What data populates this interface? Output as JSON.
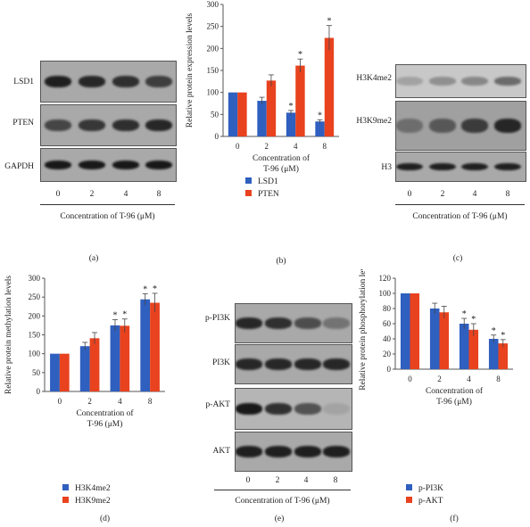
{
  "colors": {
    "blue": "#2f5fbf",
    "red": "#e8421f",
    "blot_bg": "#a9a9a9"
  },
  "conc_label": "Concentration of T-96 (μM)",
  "conc_ticks": [
    "0",
    "2",
    "4",
    "8"
  ],
  "panel_a": {
    "letter": "(a)",
    "rows": [
      "LSD1",
      "PTEN",
      "GAPDH"
    ],
    "band_intensity": [
      [
        0.9,
        0.85,
        0.8,
        0.7
      ],
      [
        0.65,
        0.75,
        0.8,
        0.85
      ],
      [
        0.95,
        0.95,
        0.95,
        0.95
      ]
    ]
  },
  "panel_c": {
    "letter": "(c)",
    "rows": [
      "H3K4me2",
      "H3K9me2",
      "H3"
    ],
    "band_intensity": [
      [
        0.2,
        0.3,
        0.35,
        0.5
      ],
      [
        0.35,
        0.5,
        0.7,
        0.85
      ],
      [
        0.9,
        0.9,
        0.9,
        0.9
      ]
    ]
  },
  "panel_e": {
    "letter": "(e)",
    "rows": [
      "p-PI3K",
      "PI3K",
      "p-AKT",
      "AKT"
    ],
    "band_intensity": [
      [
        0.85,
        0.8,
        0.6,
        0.35
      ],
      [
        0.85,
        0.85,
        0.85,
        0.85
      ],
      [
        0.95,
        0.8,
        0.6,
        0.1
      ],
      [
        0.9,
        0.9,
        0.9,
        0.9
      ]
    ]
  },
  "chart_data": [
    {
      "type": "bar",
      "letter": "(b)",
      "categories": [
        "0",
        "2",
        "4",
        "8"
      ],
      "ylabel": "Relative protein expression levels",
      "xlabel_line1": "Concentration of",
      "xlabel_line2": "T-96 (μM)",
      "ylim": [
        0,
        300
      ],
      "yticks": [
        0,
        50,
        100,
        150,
        200,
        250,
        300
      ],
      "series": [
        {
          "name": "LSD1",
          "color": "#2f5fbf",
          "values": [
            100,
            81,
            54,
            34
          ],
          "errors": [
            0,
            8,
            5,
            4
          ],
          "sig": [
            false,
            false,
            true,
            true
          ]
        },
        {
          "name": "PTEN",
          "color": "#e8421f",
          "values": [
            100,
            127,
            161,
            224
          ],
          "errors": [
            0,
            13,
            15,
            28
          ],
          "sig": [
            false,
            false,
            true,
            true
          ]
        }
      ]
    },
    {
      "type": "bar",
      "letter": "(d)",
      "categories": [
        "0",
        "2",
        "4",
        "8"
      ],
      "ylabel": "Relative protein methylation levels",
      "xlabel_line1": "Concentration of",
      "xlabel_line2": "T-96 (μM)",
      "ylim": [
        0,
        300
      ],
      "yticks": [
        0,
        50,
        100,
        150,
        200,
        250,
        300
      ],
      "series": [
        {
          "name": "H3K4me2",
          "color": "#2f5fbf",
          "values": [
            100,
            120,
            175,
            244
          ],
          "errors": [
            0,
            10,
            15,
            15
          ],
          "sig": [
            false,
            false,
            true,
            true
          ]
        },
        {
          "name": "H3K9me2",
          "color": "#e8421f",
          "values": [
            100,
            141,
            174,
            235
          ],
          "errors": [
            0,
            15,
            18,
            25
          ],
          "sig": [
            false,
            false,
            true,
            true
          ]
        }
      ]
    },
    {
      "type": "bar",
      "letter": "(f)",
      "categories": [
        "0",
        "2",
        "4",
        "8"
      ],
      "ylabel": "Relative protein phosphorylation levels",
      "xlabel_line1": "Concentration of",
      "xlabel_line2": "T-96 (μM)",
      "ylim": [
        0,
        120
      ],
      "yticks": [
        0,
        20,
        40,
        60,
        80,
        100,
        120
      ],
      "series": [
        {
          "name": "p-PI3K",
          "color": "#2f5fbf",
          "values": [
            100,
            80,
            60,
            40
          ],
          "errors": [
            0,
            7,
            7,
            5
          ],
          "sig": [
            false,
            false,
            true,
            true
          ]
        },
        {
          "name": "p-AKT",
          "color": "#e8421f",
          "values": [
            100,
            75,
            52,
            34
          ],
          "errors": [
            0,
            8,
            8,
            5
          ],
          "sig": [
            false,
            false,
            true,
            true
          ]
        }
      ]
    }
  ]
}
